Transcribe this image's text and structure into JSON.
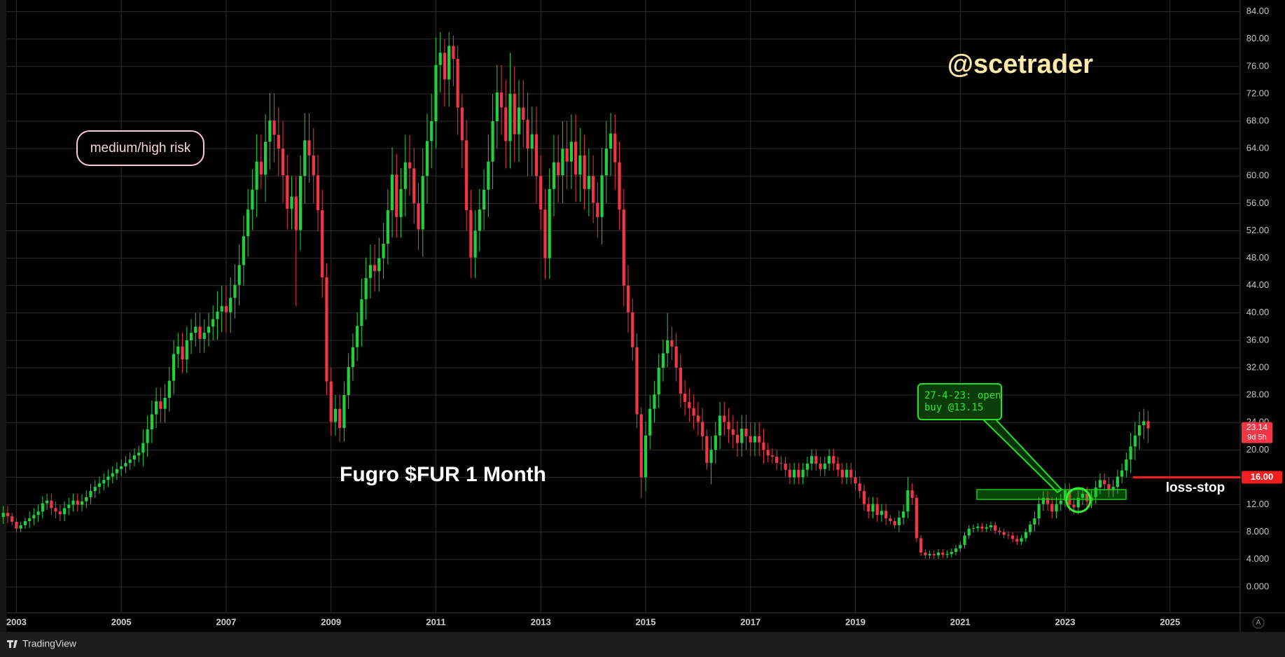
{
  "chart_data": {
    "type": "candlestick",
    "title": "Fugro $FUR 1 Month",
    "watermark": "@scetrader",
    "risk_label": "medium/high risk",
    "callout": [
      "27-4-23: open",
      "buy @13.15"
    ],
    "stop_note": "loss-stop",
    "stop_level": {
      "value": 16,
      "label": "16.00"
    },
    "countdown": "9d 5h",
    "footer": "TradingView",
    "scale_button": "A",
    "up_color": "#21d13a",
    "down_color": "#f23645",
    "grid": true,
    "ylim": [
      -3.8,
      85.7
    ],
    "yticks": [
      {
        "value": 0,
        "label": "0.000"
      },
      {
        "value": 4,
        "label": "4.000"
      },
      {
        "value": 8,
        "label": "8.000"
      },
      {
        "value": 12,
        "label": "12.00"
      },
      {
        "value": 16,
        "label": "16.00"
      },
      {
        "value": 20,
        "label": "20.00"
      },
      {
        "value": 24,
        "label": "24.00"
      },
      {
        "value": 28,
        "label": "28.00"
      },
      {
        "value": 32,
        "label": "32.00"
      },
      {
        "value": 36,
        "label": "36.00"
      },
      {
        "value": 40,
        "label": "40.00"
      },
      {
        "value": 44,
        "label": "44.00"
      },
      {
        "value": 48,
        "label": "48.00"
      },
      {
        "value": 52,
        "label": "52.00"
      },
      {
        "value": 56,
        "label": "56.00"
      },
      {
        "value": 60,
        "label": "60.00"
      },
      {
        "value": 64,
        "label": "64.00"
      },
      {
        "value": 68,
        "label": "68.00"
      },
      {
        "value": 72,
        "label": "72.00"
      },
      {
        "value": 76,
        "label": "76.00"
      },
      {
        "value": 80,
        "label": "80.00"
      },
      {
        "value": 84,
        "label": "84.00"
      }
    ],
    "categories": [
      null,
      null,
      null,
      "2003",
      null,
      null,
      null,
      null,
      null,
      null,
      null,
      null,
      null,
      null,
      null,
      null,
      null,
      null,
      null,
      null,
      null,
      null,
      null,
      null,
      null,
      null,
      null,
      "2005",
      null,
      null,
      null,
      null,
      null,
      null,
      null,
      null,
      null,
      null,
      null,
      null,
      null,
      null,
      null,
      null,
      null,
      null,
      null,
      null,
      null,
      null,
      null,
      "2007",
      null,
      null,
      null,
      null,
      null,
      null,
      null,
      null,
      null,
      null,
      null,
      null,
      null,
      null,
      null,
      null,
      null,
      null,
      null,
      null,
      null,
      null,
      null,
      "2009",
      null,
      null,
      null,
      null,
      null,
      null,
      null,
      null,
      null,
      null,
      null,
      null,
      null,
      null,
      null,
      null,
      null,
      null,
      null,
      null,
      null,
      null,
      null,
      "2011",
      null,
      null,
      null,
      null,
      null,
      null,
      null,
      null,
      null,
      null,
      null,
      null,
      null,
      null,
      null,
      null,
      null,
      null,
      null,
      null,
      null,
      null,
      null,
      "2013",
      null,
      null,
      null,
      null,
      null,
      null,
      null,
      null,
      null,
      null,
      null,
      null,
      null,
      null,
      null,
      null,
      null,
      null,
      null,
      null,
      null,
      null,
      null,
      "2015",
      null,
      null,
      null,
      null,
      null,
      null,
      null,
      null,
      null,
      null,
      null,
      null,
      null,
      null,
      null,
      null,
      null,
      null,
      null,
      null,
      null,
      null,
      null,
      "2017",
      null,
      null,
      null,
      null,
      null,
      null,
      null,
      null,
      null,
      null,
      null,
      null,
      null,
      null,
      null,
      null,
      null,
      null,
      null,
      null,
      null,
      null,
      null,
      "2019",
      null,
      null,
      null,
      null,
      null,
      null,
      null,
      null,
      null,
      null,
      null,
      null,
      null,
      null,
      null,
      null,
      null,
      null,
      null,
      null,
      null,
      null,
      null,
      "2021",
      null,
      null,
      null,
      null,
      null,
      null,
      null,
      null,
      null,
      null,
      null,
      null,
      null,
      null,
      null,
      null,
      null,
      null,
      null,
      null,
      null,
      null,
      null,
      "2023",
      null,
      null,
      null,
      null,
      null,
      null,
      null,
      null,
      null,
      null,
      null,
      null,
      null,
      null,
      null,
      null,
      null,
      null,
      null,
      null,
      null,
      null,
      null,
      "2025"
    ],
    "open": [
      10.2,
      10.8,
      10.3,
      9.5,
      8.5,
      9.0,
      9.6,
      10.0,
      10.5,
      11.0,
      12.2,
      12.6,
      11.5,
      11.0,
      10.6,
      11.5,
      12.0,
      12.6,
      12.0,
      12.5,
      13.1,
      14.0,
      14.6,
      15.1,
      15.6,
      16.1,
      16.6,
      17.2,
      17.6,
      18.1,
      18.6,
      19.2,
      19.6,
      21.0,
      23.0,
      25.2,
      27.1,
      26.0,
      27.6,
      30.1,
      34.0,
      35.1,
      33.2,
      36.0,
      37.1,
      38.0,
      36.2,
      37.1,
      38.0,
      39.1,
      40.2,
      41.0,
      40.1,
      42.2,
      44.1,
      47.0,
      51.2,
      55.1,
      58.0,
      62.1,
      60.2,
      65.0,
      68.1,
      66.0,
      64.0,
      60.1,
      55.2,
      57.0,
      52.1,
      60.0,
      65.2,
      63.0,
      60.1,
      55.0,
      45.2,
      30.0,
      24.1,
      26.0,
      23.2,
      28.0,
      32.1,
      35.0,
      38.1,
      42.0,
      45.1,
      47.0,
      46.1,
      48.0,
      50.1,
      55.0,
      60.2,
      54.0,
      58.1,
      62.0,
      61.1,
      56.0,
      52.2,
      60.0,
      65.1,
      68.0,
      76.2,
      78.0,
      74.1,
      79.0,
      77.1,
      70.0,
      65.2,
      55.0,
      48.1,
      52.0,
      55.1,
      58.0,
      62.1,
      68.0,
      72.2,
      70.0,
      65.1,
      72.0,
      66.1,
      70.0,
      68.2,
      64.0,
      66.1,
      60.0,
      55.1,
      48.0,
      58.1,
      62.0,
      60.1,
      64.0,
      62.1,
      65.0,
      60.2,
      63.0,
      58.1,
      60.0,
      56.1,
      54.0,
      60.1,
      64.0,
      66.2,
      62.0,
      55.1,
      44.0,
      40.1,
      35.0,
      25.2,
      16.0,
      22.1,
      26.0,
      28.1,
      32.0,
      34.1,
      36.0,
      35.1,
      32.0,
      28.2,
      27.0,
      26.1,
      25.0,
      24.1,
      22.0,
      18.1,
      20.0,
      22.1,
      25.0,
      24.1,
      23.0,
      22.2,
      21.0,
      23.1,
      22.0,
      21.1,
      22.0,
      21.1,
      20.0,
      19.2,
      19.0,
      18.1,
      18.0,
      17.1,
      16.0,
      17.1,
      16.0,
      17.1,
      18.0,
      19.1,
      18.0,
      17.2,
      18.0,
      19.1,
      18.0,
      17.1,
      16.0,
      17.1,
      16.0,
      15.1,
      14.0,
      12.1,
      11.0,
      12.1,
      10.5,
      11.1,
      10.0,
      9.6,
      9.0,
      10.1,
      11.0,
      14.1,
      13.0,
      7.1,
      5.0,
      4.6,
      4.8,
      4.6,
      5.0,
      4.7,
      4.8,
      5.1,
      5.6,
      6.1,
      7.5,
      8.5,
      8.6,
      8.8,
      8.5,
      8.7,
      9.0,
      8.2,
      8.0,
      7.6,
      7.5,
      7.0,
      6.6,
      7.1,
      8.0,
      9.1,
      10.0,
      12.1,
      13.0,
      12.1,
      11.0,
      12.1,
      12.6,
      14.1,
      12.0,
      11.6,
      13.0,
      13.6,
      12.5,
      13.1,
      14.5,
      15.6,
      15.0,
      14.1,
      14.6,
      16.1,
      17.0,
      18.6,
      20.5,
      22.1,
      23.6,
      24.2,
      null,
      null,
      null,
      null,
      null
    ],
    "high": [
      11.8,
      11.8,
      10.8,
      10.0,
      9.5,
      10.1,
      11.0,
      11.5,
      12.0,
      13.2,
      13.6,
      13.6,
      12.5,
      12.0,
      12.5,
      13.0,
      13.6,
      13.6,
      13.5,
      14.1,
      15.0,
      15.6,
      16.1,
      16.6,
      17.1,
      17.6,
      18.2,
      18.6,
      19.1,
      19.6,
      20.2,
      20.6,
      23.0,
      25.0,
      27.2,
      29.1,
      29.1,
      29.6,
      32.1,
      36.0,
      37.1,
      37.1,
      38.0,
      39.1,
      40.0,
      40.0,
      39.1,
      40.0,
      41.1,
      43.2,
      44.0,
      44.0,
      45.2,
      47.1,
      50.0,
      54.2,
      58.1,
      61.0,
      66.1,
      66.1,
      69.0,
      72.1,
      72.1,
      70.0,
      68.0,
      63.1,
      60.0,
      60.0,
      63.0,
      69.2,
      69.2,
      67.0,
      63.1,
      58.0,
      47.2,
      32.0,
      28.0,
      28.0,
      30.0,
      34.1,
      37.0,
      40.1,
      45.0,
      48.1,
      50.0,
      50.0,
      51.0,
      53.1,
      58.0,
      64.2,
      63.2,
      61.1,
      66.0,
      66.0,
      64.1,
      59.0,
      64.0,
      69.1,
      72.0,
      80.2,
      81.0,
      80.0,
      81.0,
      80.5,
      79.0,
      72.0,
      68.2,
      58.0,
      55.0,
      58.1,
      61.0,
      66.1,
      72.0,
      76.2,
      76.2,
      74.0,
      78.0,
      76.0,
      74.0,
      74.0,
      72.2,
      70.1,
      70.1,
      63.0,
      58.1,
      61.1,
      66.0,
      66.0,
      68.0,
      68.0,
      69.0,
      69.0,
      67.0,
      66.0,
      64.0,
      63.0,
      59.1,
      64.1,
      68.0,
      69.2,
      69.0,
      65.0,
      58.1,
      47.0,
      42.1,
      37.0,
      26.2,
      24.1,
      28.0,
      30.1,
      34.0,
      36.1,
      40.0,
      38.0,
      37.1,
      34.0,
      30.2,
      29.0,
      28.1,
      27.0,
      26.1,
      23.0,
      22.0,
      24.1,
      27.0,
      27.0,
      26.1,
      25.0,
      24.2,
      25.1,
      25.1,
      24.0,
      24.0,
      24.0,
      23.1,
      21.0,
      20.2,
      20.0,
      19.1,
      19.0,
      18.1,
      18.1,
      18.1,
      18.1,
      19.0,
      20.1,
      20.1,
      19.0,
      19.0,
      20.1,
      20.1,
      19.0,
      18.1,
      18.1,
      18.1,
      17.0,
      16.1,
      15.0,
      13.1,
      13.1,
      13.1,
      12.1,
      12.1,
      10.5,
      10.1,
      11.1,
      12.0,
      16.0,
      15.1,
      13.5,
      7.6,
      5.5,
      5.3,
      5.3,
      5.5,
      5.5,
      5.3,
      5.6,
      6.1,
      6.6,
      8.0,
      9.0,
      9.1,
      9.3,
      9.3,
      9.2,
      9.5,
      9.5,
      8.7,
      8.5,
      8.1,
      8.0,
      7.5,
      7.6,
      8.5,
      9.6,
      11.0,
      13.1,
      14.0,
      14.0,
      13.1,
      13.1,
      13.6,
      15.1,
      15.1,
      13.0,
      14.0,
      14.6,
      14.6,
      14.1,
      15.5,
      16.6,
      16.6,
      16.0,
      15.6,
      17.1,
      18.0,
      19.6,
      22.5,
      24.1,
      25.6,
      26.0,
      25.7,
      null,
      null,
      null,
      null,
      null
    ],
    "low": [
      9.2,
      9.3,
      9.0,
      8.0,
      8.0,
      8.5,
      8.6,
      9.0,
      9.5,
      10.0,
      11.2,
      10.5,
      10.0,
      9.6,
      9.6,
      10.5,
      11.0,
      11.0,
      11.0,
      11.5,
      12.1,
      13.0,
      13.6,
      14.1,
      14.6,
      15.1,
      15.6,
      16.2,
      16.6,
      17.1,
      17.6,
      18.2,
      17.6,
      19.0,
      21.0,
      23.2,
      24.0,
      24.0,
      25.6,
      28.1,
      32.0,
      31.2,
      31.2,
      34.0,
      35.1,
      34.2,
      34.2,
      35.1,
      36.0,
      36.1,
      37.2,
      37.1,
      37.1,
      39.2,
      41.1,
      44.0,
      48.2,
      52.1,
      54.0,
      58.1,
      56.2,
      61.0,
      62.0,
      60.0,
      56.1,
      52.2,
      52.2,
      41.0,
      49.1,
      56.0,
      59.0,
      56.1,
      52.0,
      42.2,
      28.0,
      22.1,
      22.1,
      21.2,
      21.2,
      26.0,
      30.1,
      33.0,
      35.1,
      39.0,
      42.1,
      43.1,
      43.1,
      45.0,
      47.1,
      51.0,
      51.0,
      51.0,
      54.1,
      57.1,
      53.0,
      49.2,
      48.2,
      56.0,
      61.1,
      64.0,
      72.2,
      70.1,
      70.1,
      73.1,
      66.0,
      61.2,
      52.0,
      45.1,
      45.1,
      49.0,
      52.1,
      54.0,
      58.1,
      64.0,
      66.0,
      61.1,
      61.1,
      62.1,
      62.1,
      64.2,
      60.0,
      60.0,
      56.0,
      52.1,
      45.0,
      45.0,
      54.1,
      56.1,
      56.1,
      58.1,
      58.1,
      56.2,
      56.2,
      55.1,
      54.1,
      53.1,
      51.0,
      50.0,
      56.1,
      60.0,
      58.0,
      52.1,
      41.0,
      37.1,
      33.0,
      23.2,
      13.0,
      14.0,
      20.1,
      24.0,
      26.1,
      30.0,
      32.1,
      33.1,
      30.0,
      26.2,
      25.0,
      24.1,
      23.0,
      22.1,
      20.0,
      17.1,
      15.0,
      18.0,
      20.1,
      22.1,
      21.0,
      20.2,
      19.0,
      19.0,
      20.0,
      19.1,
      19.1,
      19.1,
      18.0,
      18.2,
      18.0,
      17.1,
      17.0,
      16.1,
      15.0,
      15.0,
      15.0,
      15.0,
      16.1,
      17.0,
      17.0,
      16.2,
      16.2,
      17.0,
      17.0,
      16.1,
      15.0,
      15.0,
      15.0,
      14.1,
      13.0,
      11.1,
      10.0,
      10.0,
      9.5,
      9.5,
      9.0,
      9.1,
      8.5,
      8.0,
      9.1,
      10.0,
      12.0,
      6.6,
      4.5,
      4.1,
      4.1,
      4.1,
      4.1,
      4.2,
      4.2,
      4.3,
      4.6,
      5.1,
      5.6,
      7.0,
      8.0,
      8.1,
      8.0,
      8.0,
      8.2,
      7.7,
      7.5,
      7.1,
      7.0,
      6.5,
      6.1,
      6.1,
      6.6,
      7.5,
      8.1,
      9.0,
      11.1,
      11.1,
      10.0,
      10.0,
      11.1,
      11.6,
      11.0,
      10.6,
      10.6,
      12.0,
      11.5,
      11.5,
      12.1,
      13.5,
      14.0,
      13.1,
      13.1,
      13.6,
      15.1,
      16.0,
      16.6,
      18.5,
      20.1,
      21.6,
      21.0,
      null,
      null,
      null,
      null,
      null
    ],
    "close": [
      10.8,
      10.3,
      9.5,
      8.5,
      9.0,
      9.6,
      10.0,
      10.5,
      11.0,
      12.2,
      12.6,
      11.5,
      11.0,
      10.6,
      11.5,
      12.0,
      12.6,
      12.0,
      12.5,
      13.1,
      14.0,
      14.6,
      15.1,
      15.6,
      16.1,
      16.6,
      17.2,
      17.6,
      18.1,
      18.6,
      19.2,
      19.6,
      21.0,
      23.0,
      25.2,
      27.1,
      26.0,
      27.6,
      30.1,
      34.0,
      35.1,
      33.2,
      36.0,
      37.1,
      38.0,
      36.2,
      37.1,
      38.0,
      39.1,
      40.2,
      41.0,
      40.1,
      42.2,
      44.1,
      47.0,
      51.2,
      55.1,
      58.0,
      62.1,
      60.2,
      65.0,
      68.1,
      66.0,
      64.0,
      60.1,
      55.2,
      57.0,
      52.1,
      60.0,
      65.2,
      63.0,
      60.1,
      55.0,
      45.2,
      30.0,
      24.1,
      26.0,
      23.2,
      28.0,
      32.1,
      35.0,
      38.1,
      42.0,
      45.1,
      47.0,
      46.1,
      48.0,
      50.1,
      55.0,
      60.2,
      54.0,
      58.1,
      62.0,
      61.1,
      56.0,
      52.2,
      60.0,
      65.1,
      68.0,
      76.2,
      78.0,
      74.1,
      79.0,
      77.1,
      70.0,
      65.2,
      55.0,
      48.1,
      52.0,
      55.1,
      58.0,
      62.1,
      68.0,
      72.2,
      70.0,
      65.1,
      72.0,
      66.1,
      70.0,
      68.2,
      64.0,
      66.1,
      60.0,
      55.1,
      48.0,
      58.1,
      62.0,
      60.1,
      64.0,
      62.1,
      65.0,
      60.2,
      63.0,
      58.1,
      60.0,
      56.1,
      54.0,
      60.1,
      64.0,
      66.2,
      62.0,
      55.1,
      44.0,
      40.1,
      35.0,
      25.2,
      16.0,
      22.1,
      26.0,
      28.1,
      32.0,
      34.1,
      36.0,
      35.1,
      32.0,
      28.2,
      27.0,
      26.1,
      25.0,
      24.1,
      22.0,
      18.1,
      20.0,
      22.1,
      25.0,
      24.1,
      23.0,
      22.2,
      21.0,
      23.1,
      22.0,
      21.1,
      22.0,
      21.1,
      20.0,
      19.2,
      19.0,
      18.1,
      18.0,
      17.1,
      16.0,
      17.1,
      16.0,
      17.1,
      18.0,
      19.1,
      18.0,
      17.2,
      18.0,
      19.1,
      18.0,
      17.1,
      16.0,
      17.1,
      16.0,
      15.1,
      14.0,
      12.1,
      11.0,
      12.1,
      10.5,
      11.1,
      10.0,
      9.6,
      9.0,
      10.1,
      11.0,
      14.1,
      13.0,
      7.1,
      5.0,
      4.6,
      4.8,
      4.6,
      5.0,
      4.7,
      4.8,
      5.1,
      5.6,
      6.1,
      7.5,
      8.5,
      8.6,
      8.8,
      8.5,
      8.7,
      9.0,
      8.2,
      8.0,
      7.6,
      7.5,
      7.0,
      6.6,
      7.1,
      8.0,
      9.1,
      10.0,
      12.1,
      13.0,
      12.1,
      11.0,
      12.1,
      12.6,
      14.1,
      12.0,
      11.6,
      13.0,
      13.6,
      12.5,
      13.1,
      14.5,
      15.6,
      15.0,
      14.1,
      14.6,
      16.1,
      17.0,
      18.6,
      20.5,
      22.1,
      23.6,
      24.2,
      23.14,
      null,
      null,
      null,
      null,
      null
    ]
  }
}
